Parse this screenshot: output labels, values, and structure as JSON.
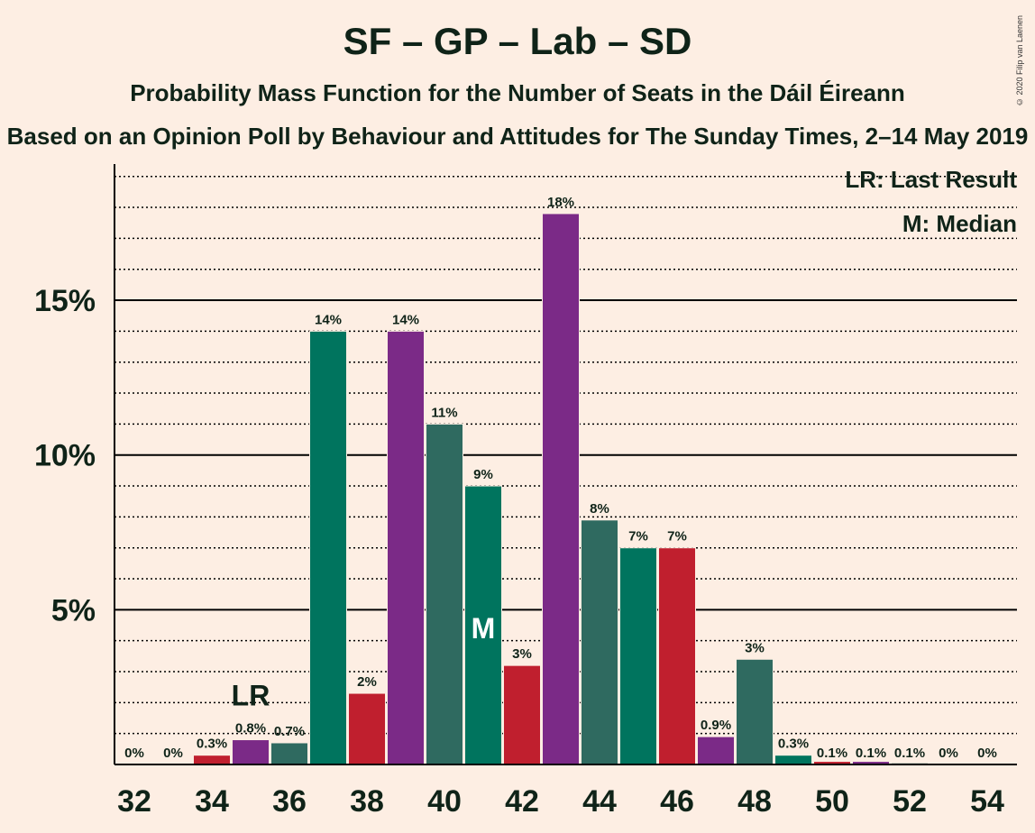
{
  "title": "SF – GP – Lab – SD",
  "subtitle": "Probability Mass Function for the Number of Seats in the Dáil Éireann",
  "subtitle2": "Based on an Opinion Poll by Behaviour and Attitudes for The Sunday Times, 2–14 May 2019",
  "copyright": "© 2020 Filip van Laenen",
  "legend": {
    "last_result": "LR: Last Result",
    "median": "M: Median"
  },
  "colors": {
    "background": "#FDEEE3",
    "sf": "#00745E",
    "gp_dark": "#2F6A60",
    "lab": "#C01F2E",
    "sd": "#7B2A87"
  },
  "chart_data": {
    "type": "bar",
    "x": [
      32,
      33,
      34,
      35,
      36,
      37,
      38,
      39,
      40,
      41,
      42,
      43,
      44,
      45,
      46,
      47,
      48,
      49,
      50,
      51,
      52,
      53,
      54
    ],
    "values": [
      0,
      0,
      0.3,
      0.8,
      0.7,
      14,
      2.3,
      14,
      11,
      9,
      3.2,
      17.8,
      7.9,
      7,
      7,
      0.9,
      3.4,
      0.3,
      0.1,
      0.1,
      0.05,
      0,
      0
    ],
    "labels": [
      "0%",
      "0%",
      "0.3%",
      "0.8%",
      "0.7%",
      "14%",
      "2%",
      "14%",
      "11%",
      "9%",
      "3%",
      "18%",
      "8%",
      "7%",
      "7%",
      "0.9%",
      "3%",
      "0.3%",
      "0.1%",
      "0.1%",
      "0.1%",
      "0%",
      "0%"
    ],
    "bar_colors": [
      "#C01F2E",
      "#C01F2E",
      "#C01F2E",
      "#7B2A87",
      "#2F6A60",
      "#00745E",
      "#C01F2E",
      "#7B2A87",
      "#2F6A60",
      "#00745E",
      "#C01F2E",
      "#7B2A87",
      "#2F6A60",
      "#00745E",
      "#C01F2E",
      "#7B2A87",
      "#2F6A60",
      "#00745E",
      "#C01F2E",
      "#7B2A87",
      "#2F6A60",
      "#00745E",
      "#C01F2E"
    ],
    "x_ticks": [
      "32",
      "34",
      "36",
      "38",
      "40",
      "42",
      "44",
      "46",
      "48",
      "50",
      "52",
      "54"
    ],
    "y_ticks": [
      "5%",
      "10%",
      "15%"
    ],
    "ylim": [
      0,
      19
    ],
    "last_result_seat": 35,
    "last_result_label": "LR",
    "median_seat": 41,
    "median_label": "M",
    "grid": true
  }
}
